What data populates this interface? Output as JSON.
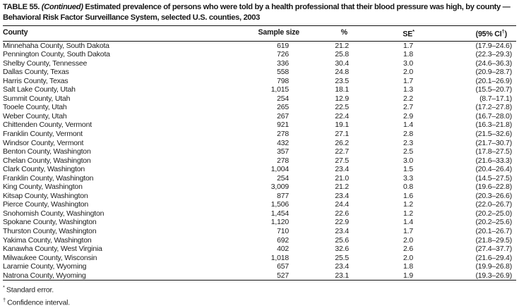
{
  "title": {
    "label": "TABLE 55.",
    "continued": "(Continued)",
    "rest": "Estimated prevalence of persons who were told by a health professional that their blood pressure was high, by county — Behavioral Risk Factor Surveillance System, selected U.S. counties, 2003"
  },
  "table": {
    "columns": {
      "county": "County",
      "sample_size": "Sample size",
      "percent": "%",
      "se_base": "SE",
      "se_sup": "*",
      "ci_open": "(95% CI",
      "ci_sup": "†",
      "ci_close": ")"
    },
    "rows": [
      {
        "county": "Minnehaha County, South Dakota",
        "sample_size": "619",
        "percent": "21.2",
        "se": "1.7",
        "ci": "(17.9–24.6)"
      },
      {
        "county": "Pennington County, South Dakota",
        "sample_size": "726",
        "percent": "25.8",
        "se": "1.8",
        "ci": "(22.3–29.3)"
      },
      {
        "county": "Shelby County, Tennessee",
        "sample_size": "336",
        "percent": "30.4",
        "se": "3.0",
        "ci": "(24.6–36.3)"
      },
      {
        "county": "Dallas County, Texas",
        "sample_size": "558",
        "percent": "24.8",
        "se": "2.0",
        "ci": "(20.9–28.7)"
      },
      {
        "county": "Harris County, Texas",
        "sample_size": "798",
        "percent": "23.5",
        "se": "1.7",
        "ci": "(20.1–26.9)"
      },
      {
        "county": "Salt Lake County, Utah",
        "sample_size": "1,015",
        "percent": "18.1",
        "se": "1.3",
        "ci": "(15.5–20.7)"
      },
      {
        "county": "Summit County, Utah",
        "sample_size": "254",
        "percent": "12.9",
        "se": "2.2",
        "ci": "(8.7–17.1)"
      },
      {
        "county": "Tooele County, Utah",
        "sample_size": "265",
        "percent": "22.5",
        "se": "2.7",
        "ci": "(17.2–27.8)"
      },
      {
        "county": "Weber County, Utah",
        "sample_size": "267",
        "percent": "22.4",
        "se": "2.9",
        "ci": "(16.7–28.0)"
      },
      {
        "county": "Chittenden County, Vermont",
        "sample_size": "921",
        "percent": "19.1",
        "se": "1.4",
        "ci": "(16.3–21.8)"
      },
      {
        "county": "Franklin County, Vermont",
        "sample_size": "278",
        "percent": "27.1",
        "se": "2.8",
        "ci": "(21.5–32.6)"
      },
      {
        "county": "Windsor County, Vermont",
        "sample_size": "432",
        "percent": "26.2",
        "se": "2.3",
        "ci": "(21.7–30.7)"
      },
      {
        "county": "Benton County, Washington",
        "sample_size": "357",
        "percent": "22.7",
        "se": "2.5",
        "ci": "(17.8–27.5)"
      },
      {
        "county": "Chelan County, Washington",
        "sample_size": "278",
        "percent": "27.5",
        "se": "3.0",
        "ci": "(21.6–33.3)"
      },
      {
        "county": "Clark County, Washington",
        "sample_size": "1,004",
        "percent": "23.4",
        "se": "1.5",
        "ci": "(20.4–26.4)"
      },
      {
        "county": "Franklin County, Washington",
        "sample_size": "254",
        "percent": "21.0",
        "se": "3.3",
        "ci": "(14.5–27.5)"
      },
      {
        "county": "King County, Washington",
        "sample_size": "3,009",
        "percent": "21.2",
        "se": "0.8",
        "ci": "(19.6–22.8)"
      },
      {
        "county": "Kitsap County, Washington",
        "sample_size": "877",
        "percent": "23.4",
        "se": "1.6",
        "ci": "(20.3–26.6)"
      },
      {
        "county": "Pierce County, Washington",
        "sample_size": "1,506",
        "percent": "24.4",
        "se": "1.2",
        "ci": "(22.0–26.7)"
      },
      {
        "county": "Snohomish County, Washington",
        "sample_size": "1,454",
        "percent": "22.6",
        "se": "1.2",
        "ci": "(20.2–25.0)"
      },
      {
        "county": "Spokane County, Washington",
        "sample_size": "1,120",
        "percent": "22.9",
        "se": "1.4",
        "ci": "(20.2–25.6)"
      },
      {
        "county": "Thurston County, Washington",
        "sample_size": "710",
        "percent": "23.4",
        "se": "1.7",
        "ci": "(20.1–26.7)"
      },
      {
        "county": "Yakima County, Washington",
        "sample_size": "692",
        "percent": "25.6",
        "se": "2.0",
        "ci": "(21.8–29.5)"
      },
      {
        "county": "Kanawha County, West Virginia",
        "sample_size": "402",
        "percent": "32.6",
        "se": "2.6",
        "ci": "(27.4–37.7)"
      },
      {
        "county": "Milwaukee County, Wisconsin",
        "sample_size": "1,018",
        "percent": "25.5",
        "se": "2.0",
        "ci": "(21.6–29.4)"
      },
      {
        "county": "Laramie County, Wyoming",
        "sample_size": "657",
        "percent": "23.4",
        "se": "1.8",
        "ci": "(19.9–26.8)"
      },
      {
        "county": "Natrona County, Wyoming",
        "sample_size": "527",
        "percent": "23.1",
        "se": "1.9",
        "ci": "(19.3–26.9)"
      }
    ]
  },
  "footnotes": [
    {
      "marker": "*",
      "text": "Standard error."
    },
    {
      "marker": "†",
      "text": "Confidence interval."
    }
  ]
}
